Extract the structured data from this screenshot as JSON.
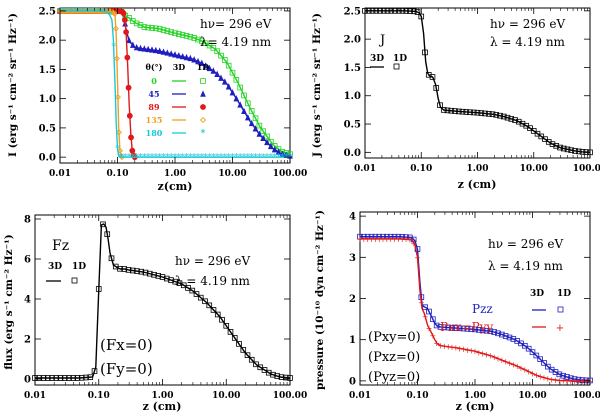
{
  "chart_data": [
    {
      "id": "p1",
      "type": "line",
      "xscale": "log",
      "xlim": [
        0.01,
        100
      ],
      "ylim": [
        -0.1,
        2.55
      ],
      "xticks": [
        0.01,
        0.1,
        1,
        10,
        100
      ],
      "xtick_labels": [
        "0.01",
        "0.10",
        "1.00",
        "10.00",
        "100.00"
      ],
      "yticks": [
        0,
        0.5,
        1,
        1.5,
        2,
        2.5
      ],
      "ytick_labels": [
        "0.0",
        "0.5",
        "1.0",
        "1.5",
        "2.0",
        "2.5"
      ],
      "xlabel": "z(cm)",
      "ylabel": "I (erg s⁻¹ cm⁻² sr⁻¹ Hz⁻¹)",
      "annotations": [
        "hν= 296 eV",
        "λ=  4.19 nm"
      ],
      "legend": {
        "header": [
          "θ(°)",
          "3D",
          "1D"
        ],
        "entries": [
          "0",
          "45",
          "89",
          "135",
          "180"
        ]
      },
      "series": [
        {
          "name": "0",
          "color": "#22d322",
          "marker": "square",
          "x": [
            0.01,
            0.05,
            0.1,
            0.11,
            0.12,
            0.13,
            0.14,
            0.16,
            0.2,
            0.25,
            0.3,
            0.5,
            1,
            2,
            3,
            5,
            8,
            12,
            20,
            30,
            50,
            70,
            100
          ],
          "y": [
            2.5,
            2.5,
            2.5,
            2.5,
            2.5,
            2.45,
            2.4,
            2.38,
            2.3,
            2.26,
            2.22,
            2.2,
            2.12,
            2.05,
            1.98,
            1.85,
            1.62,
            1.3,
            0.85,
            0.52,
            0.22,
            0.1,
            0.05
          ]
        },
        {
          "name": "45",
          "color": "#1f1fbf",
          "marker": "triangle",
          "x": [
            0.01,
            0.05,
            0.1,
            0.11,
            0.12,
            0.13,
            0.14,
            0.16,
            0.2,
            0.25,
            0.3,
            0.5,
            1,
            2,
            3,
            5,
            8,
            12,
            20,
            30,
            50,
            70,
            100
          ],
          "y": [
            2.5,
            2.5,
            2.5,
            2.5,
            2.5,
            2.4,
            2.2,
            1.98,
            1.88,
            1.86,
            1.85,
            1.82,
            1.75,
            1.68,
            1.6,
            1.45,
            1.25,
            0.98,
            0.62,
            0.38,
            0.15,
            0.06,
            0.02
          ]
        },
        {
          "name": "89",
          "color": "#e01818",
          "marker": "circle",
          "x": [
            0.01,
            0.05,
            0.1,
            0.12,
            0.13,
            0.14,
            0.15,
            0.16,
            0.17,
            0.18,
            0.19,
            0.2
          ],
          "y": [
            2.5,
            2.5,
            2.5,
            2.49,
            2.45,
            2.2,
            1.6,
            0.9,
            0.4,
            0.12,
            0.03,
            0.0
          ]
        },
        {
          "name": "135",
          "color": "#f0a020",
          "marker": "diamond",
          "x": [
            0.01,
            0.05,
            0.08,
            0.09,
            0.095,
            0.1,
            0.105,
            0.11,
            0.115,
            0.12
          ],
          "y": [
            2.5,
            2.5,
            2.49,
            2.45,
            2.1,
            1.3,
            0.5,
            0.12,
            0.02,
            0.0
          ]
        },
        {
          "name": "180",
          "color": "#18c8d8",
          "marker": "star",
          "x": [
            0.01,
            0.03,
            0.05,
            0.07,
            0.08,
            0.085,
            0.09,
            0.095,
            0.1,
            0.105,
            0.11,
            0.12,
            0.15,
            0.2,
            0.5,
            1,
            3,
            10,
            30,
            100
          ],
          "y": [
            2.5,
            2.5,
            2.5,
            2.47,
            2.35,
            2.0,
            1.3,
            0.6,
            0.15,
            0.02,
            0.0,
            0.0,
            0.0,
            0.0,
            0.0,
            0.0,
            0.0,
            0.0,
            0.0,
            0.0
          ]
        }
      ]
    },
    {
      "id": "p2",
      "type": "line",
      "xscale": "log",
      "xlim": [
        0.01,
        100
      ],
      "ylim": [
        -0.1,
        2.55
      ],
      "xticks": [
        0.01,
        0.1,
        1,
        10,
        100
      ],
      "xtick_labels": [
        "0.01",
        "0.10",
        "1.00",
        "10.00",
        "100.00"
      ],
      "yticks": [
        0,
        0.5,
        1,
        1.5,
        2,
        2.5
      ],
      "ytick_labels": [
        "0.0",
        "0.5",
        "1.0",
        "1.5",
        "2.0",
        "2.5"
      ],
      "xlabel": "z (cm)",
      "ylabel": "J (erg s⁻¹ cm⁻² sr⁻¹ Hz⁻¹)",
      "annotations": [
        "hν = 296 eV",
        "λ   = 4.19 nm"
      ],
      "panel_label": "J",
      "legend": {
        "header": [
          "3D",
          "1D"
        ]
      },
      "series": [
        {
          "name": "J",
          "color": "#000000",
          "marker": "square",
          "x": [
            0.01,
            0.05,
            0.08,
            0.09,
            0.1,
            0.11,
            0.12,
            0.13,
            0.14,
            0.16,
            0.18,
            0.2,
            0.22,
            0.25,
            0.3,
            0.5,
            1,
            2,
            3,
            5,
            8,
            12,
            20,
            30,
            50,
            70,
            100
          ],
          "y": [
            2.5,
            2.5,
            2.49,
            2.47,
            2.4,
            2.1,
            1.6,
            1.4,
            1.35,
            1.33,
            1.2,
            0.95,
            0.8,
            0.75,
            0.74,
            0.72,
            0.7,
            0.67,
            0.63,
            0.56,
            0.45,
            0.32,
            0.16,
            0.08,
            0.03,
            0.01,
            0.0
          ]
        }
      ]
    },
    {
      "id": "p3",
      "type": "line",
      "xscale": "log",
      "xlim": [
        0.01,
        100
      ],
      "ylim": [
        -0.3,
        8.2
      ],
      "xticks": [
        0.01,
        0.1,
        1,
        10,
        100
      ],
      "xtick_labels": [
        "0.01",
        "0.10",
        "1.00",
        "10.00",
        "100.00"
      ],
      "yticks": [
        0,
        2,
        4,
        6,
        8
      ],
      "ytick_labels": [
        "0",
        "2",
        "4",
        "6",
        "8"
      ],
      "xlabel": "z (cm)",
      "ylabel": "flux (erg s⁻¹ cm⁻² Hz⁻¹)",
      "annotations": [
        "hν = 296 eV",
        "λ   = 4.19 nm"
      ],
      "panel_label": "Fz",
      "notes": [
        "(Fx=0)",
        "(Fy=0)"
      ],
      "legend": {
        "header": [
          "3D",
          "1D"
        ]
      },
      "series": [
        {
          "name": "Fz",
          "color": "#000000",
          "marker": "square",
          "x": [
            0.01,
            0.05,
            0.08,
            0.09,
            0.1,
            0.11,
            0.12,
            0.13,
            0.14,
            0.15,
            0.17,
            0.2,
            0.22,
            0.25,
            0.3,
            0.5,
            1,
            2,
            3,
            5,
            8,
            12,
            20,
            30,
            50,
            70,
            100
          ],
          "y": [
            0.05,
            0.05,
            0.1,
            0.6,
            4.5,
            7.7,
            7.75,
            7.6,
            7.0,
            6.3,
            5.7,
            5.55,
            5.5,
            5.5,
            5.45,
            5.35,
            5.1,
            4.75,
            4.4,
            3.8,
            3.1,
            2.3,
            1.3,
            0.7,
            0.25,
            0.1,
            0.05
          ]
        }
      ]
    },
    {
      "id": "p4",
      "type": "line",
      "xscale": "log",
      "xlim": [
        0.01,
        100
      ],
      "ylim": [
        -0.1,
        4.1
      ],
      "xticks": [
        0.01,
        0.1,
        1,
        10,
        100
      ],
      "xtick_labels": [
        "0.01",
        "0.10",
        "1.00",
        "10.00",
        "100.00"
      ],
      "yticks": [
        0,
        1,
        2,
        3,
        4
      ],
      "ytick_labels": [
        "0",
        "1",
        "2",
        "3",
        "4"
      ],
      "xlabel": "z (cm)",
      "ylabel": "pressure (10⁻¹⁰ dyn cm⁻² Hz⁻¹)",
      "annotations": [
        "hν = 296 eV",
        "λ   = 4.19 nm"
      ],
      "notes": [
        "(Pxy=0)",
        "(Pxz=0)",
        "(Pyz=0)"
      ],
      "legend": {
        "header": [
          "3D",
          "1D"
        ],
        "entries": [
          "Pzz",
          "Pxx=Pyy"
        ]
      },
      "series": [
        {
          "name": "Pzz",
          "color": "#1f1fbf",
          "marker": "square",
          "x": [
            0.01,
            0.05,
            0.08,
            0.09,
            0.1,
            0.11,
            0.12,
            0.13,
            0.14,
            0.15,
            0.17,
            0.2,
            0.22,
            0.25,
            0.3,
            0.5,
            1,
            2,
            3,
            5,
            8,
            12,
            20,
            30,
            50,
            70,
            100
          ],
          "y": [
            3.5,
            3.5,
            3.48,
            3.4,
            3.2,
            2.4,
            1.85,
            1.8,
            1.78,
            1.75,
            1.6,
            1.4,
            1.33,
            1.31,
            1.3,
            1.28,
            1.25,
            1.2,
            1.12,
            1.0,
            0.82,
            0.6,
            0.3,
            0.15,
            0.05,
            0.02,
            0.01
          ]
        },
        {
          "name": "Pxx=Pyy",
          "color": "#e01818",
          "marker": "plus",
          "x": [
            0.01,
            0.05,
            0.08,
            0.09,
            0.1,
            0.11,
            0.12,
            0.13,
            0.14,
            0.15,
            0.17,
            0.2,
            0.22,
            0.25,
            0.3,
            0.5,
            1,
            2,
            3,
            5,
            8,
            12,
            20,
            30,
            50,
            70,
            100
          ],
          "y": [
            3.45,
            3.45,
            3.43,
            3.3,
            3.0,
            2.2,
            1.75,
            1.65,
            1.5,
            1.35,
            1.2,
            1.0,
            0.9,
            0.86,
            0.84,
            0.8,
            0.72,
            0.6,
            0.5,
            0.38,
            0.25,
            0.13,
            0.04,
            0.01,
            0.0,
            0.0,
            0.0
          ]
        }
      ]
    }
  ]
}
